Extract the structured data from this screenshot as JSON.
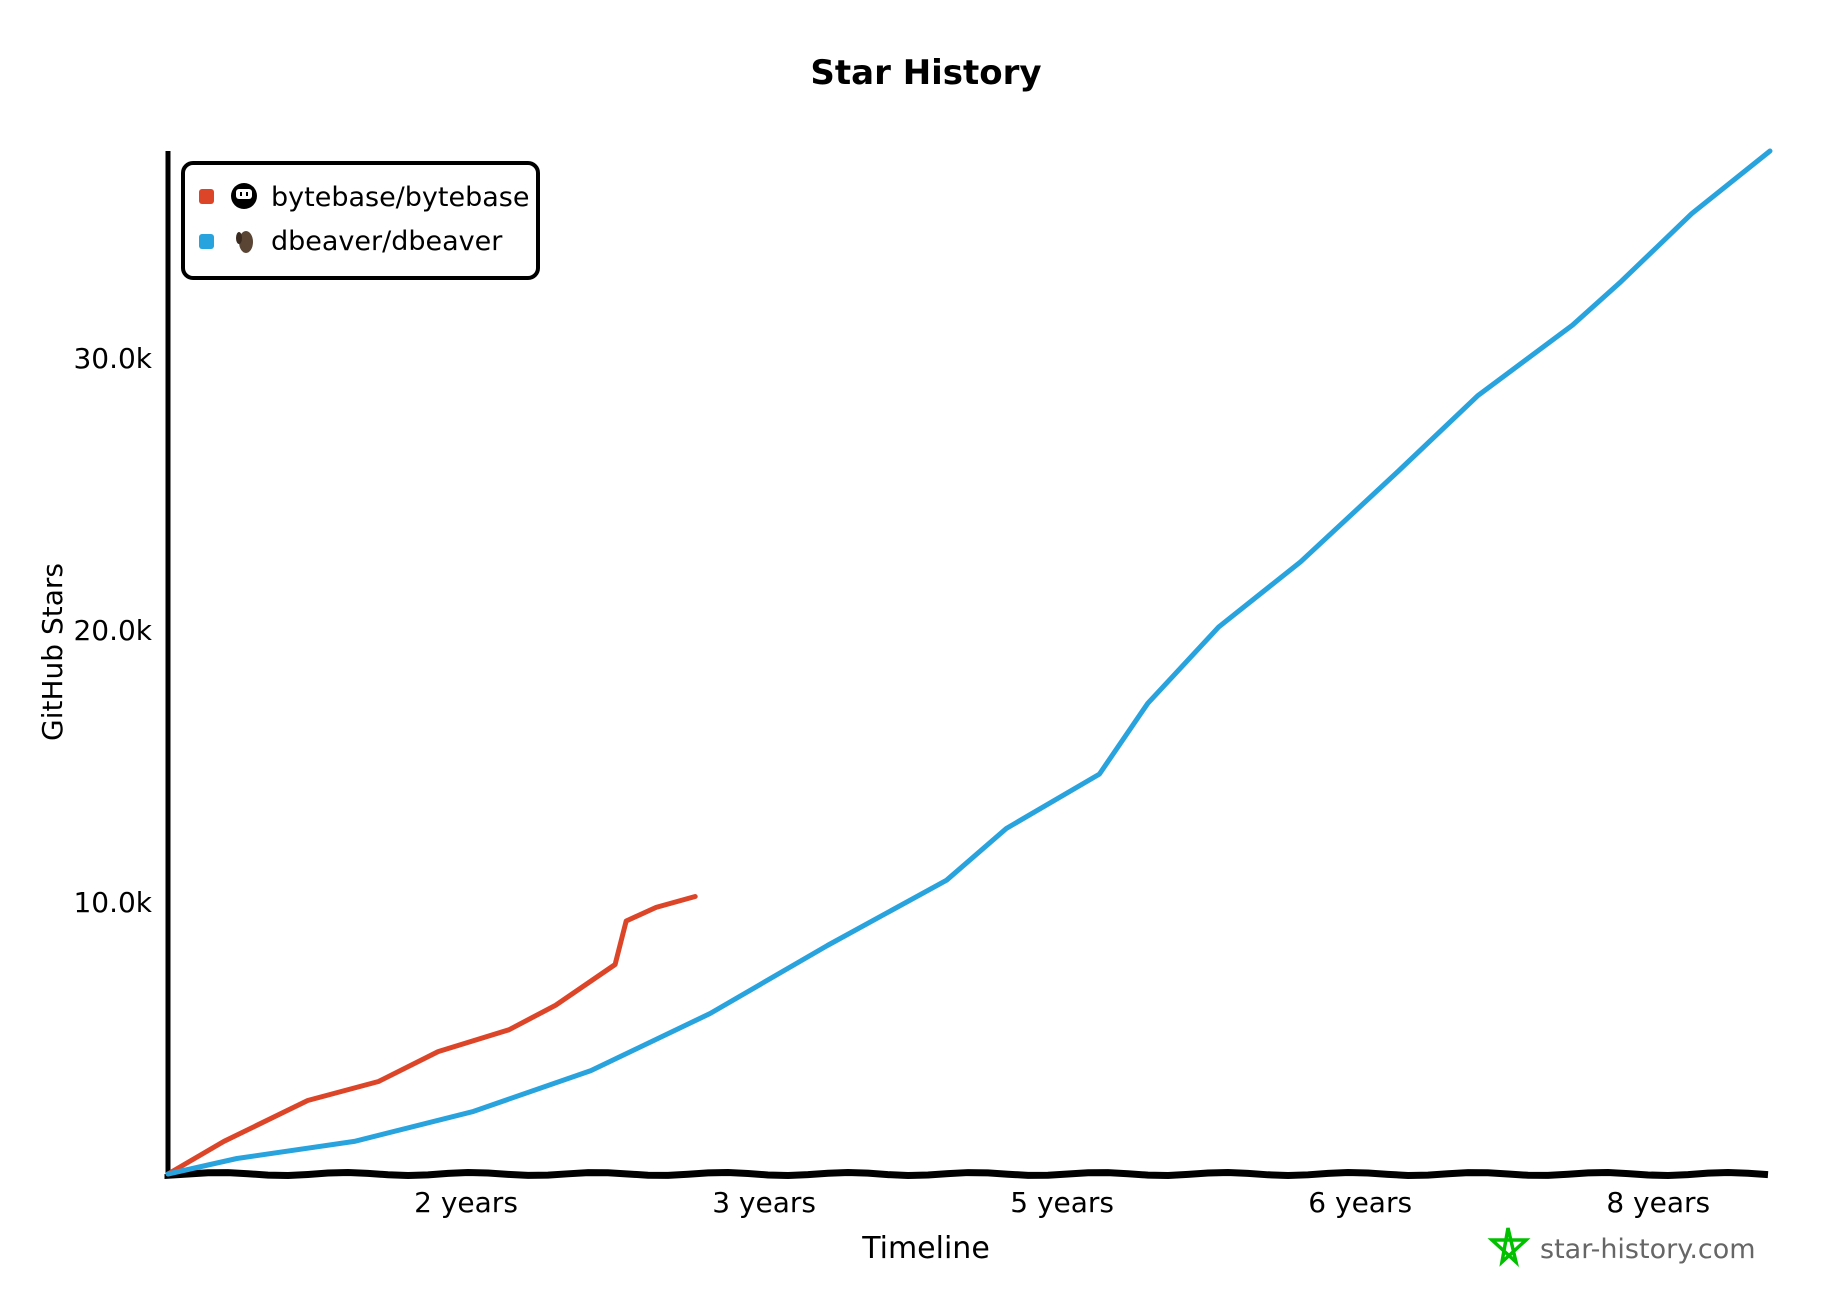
{
  "chart_data": {
    "type": "line",
    "title": "Star History",
    "xlabel": "Timeline",
    "ylabel": "GitHub Stars",
    "x_unit": "years",
    "xlim": [
      0,
      8.6
    ],
    "ylim": [
      0,
      37600
    ],
    "x_ticks": [
      {
        "value": 1.6,
        "label": "2 years"
      },
      {
        "value": 3.2,
        "label": "3 years"
      },
      {
        "value": 4.8,
        "label": "5 years"
      },
      {
        "value": 6.4,
        "label": "6 years"
      },
      {
        "value": 8.0,
        "label": "8 years"
      }
    ],
    "y_ticks": [
      {
        "value": 10000,
        "label": "10.0k"
      },
      {
        "value": 20000,
        "label": "20.0k"
      },
      {
        "value": 30000,
        "label": "30.0k"
      }
    ],
    "grid": false,
    "legend_position": "top-left",
    "series": [
      {
        "name": "bytebase/bytebase",
        "color": "#dd4528",
        "icon": "bytebase-logo-icon",
        "x": [
          0,
          0.3,
          0.75,
          1.13,
          1.45,
          1.83,
          2.08,
          2.4,
          2.46,
          2.62,
          2.83
        ],
        "y": [
          0,
          1200,
          2700,
          3400,
          4500,
          5300,
          6200,
          7700,
          9300,
          9800,
          10200
        ]
      },
      {
        "name": "dbeaver/dbeaver",
        "color": "#28a3dd",
        "icon": "beaver-logo-icon",
        "x": [
          0,
          0.37,
          1.0,
          1.64,
          2.27,
          2.91,
          3.54,
          4.18,
          4.5,
          5.0,
          5.26,
          5.64,
          6.08,
          6.6,
          7.03,
          7.54,
          7.8,
          8.18,
          8.6
        ],
        "y": [
          0,
          570,
          1200,
          2300,
          3800,
          5900,
          8400,
          10800,
          12700,
          14700,
          17300,
          20100,
          22500,
          25800,
          28600,
          31200,
          32800,
          35300,
          37600
        ]
      }
    ]
  },
  "watermark": {
    "text": "star-history.com",
    "color": "#00c000"
  }
}
